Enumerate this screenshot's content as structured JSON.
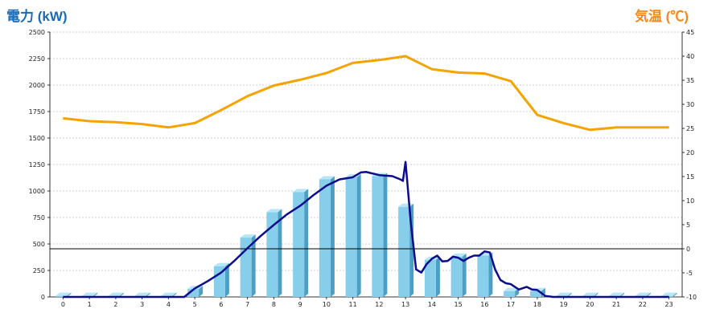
{
  "chart_data": {
    "type": "bar",
    "left_axis_title": "電力 (kW)",
    "right_axis_title": "気温 (℃)",
    "colors": {
      "left_title": "#1a6bb5",
      "right_title": "#f08a1c",
      "bar_front": "#87ceeb",
      "bar_side": "#4c9fc4",
      "bar_top": "#b9e6f7",
      "power_line": "#0c0c8c",
      "temp_line": "#f5a300",
      "grid": "#bfbfbf",
      "zero_line": "#000000"
    },
    "categories": [
      "0",
      "1",
      "2",
      "3",
      "4",
      "5",
      "6",
      "7",
      "8",
      "9",
      "10",
      "11",
      "12",
      "13",
      "14",
      "15",
      "16",
      "17",
      "18",
      "19",
      "20",
      "21",
      "22",
      "23"
    ],
    "ylim_left": [
      0,
      2500
    ],
    "yticks_left": [
      "0",
      "250",
      "500",
      "750",
      "1000",
      "1250",
      "1500",
      "1750",
      "2000",
      "2250",
      "2500"
    ],
    "ylim_right": [
      -10,
      45
    ],
    "yticks_right": [
      "-10",
      "-5",
      "0",
      "5",
      "10",
      "15",
      "20",
      "25",
      "30",
      "35",
      "40",
      "45"
    ],
    "grid": true,
    "series": [
      {
        "kind": "bar",
        "axis": "left",
        "values": [
          10,
          10,
          10,
          10,
          10,
          75,
          290,
          560,
          800,
          990,
          1110,
          1130,
          1140,
          850,
          350,
          380,
          390,
          55,
          55,
          10,
          10,
          10,
          10,
          10
        ]
      },
      {
        "kind": "line",
        "axis": "left",
        "x": [
          0,
          1,
          2,
          3,
          4,
          4.6,
          5,
          5.5,
          6,
          6.5,
          7,
          7.5,
          8,
          8.5,
          9,
          9.5,
          10,
          10.5,
          11,
          11.3,
          11.5,
          12,
          12.5,
          12.8,
          12.9,
          13,
          13.2,
          13.4,
          13.6,
          13.8,
          14,
          14.2,
          14.4,
          14.6,
          14.8,
          15,
          15.2,
          15.4,
          15.6,
          15.8,
          16,
          16.2,
          16.4,
          16.6,
          16.8,
          17,
          17.3,
          17.6,
          17.8,
          18,
          18.3,
          18.6,
          19,
          20,
          21,
          22,
          23
        ],
        "values": [
          0,
          0,
          0,
          0,
          0,
          0,
          80,
          150,
          230,
          340,
          460,
          575,
          680,
          780,
          860,
          960,
          1050,
          1110,
          1130,
          1175,
          1180,
          1150,
          1140,
          1110,
          1095,
          1275,
          700,
          260,
          230,
          310,
          360,
          390,
          335,
          340,
          380,
          370,
          340,
          370,
          390,
          390,
          430,
          420,
          260,
          160,
          130,
          120,
          70,
          95,
          70,
          65,
          10,
          0,
          0,
          0,
          0,
          0,
          0
        ]
      },
      {
        "kind": "line",
        "axis": "right",
        "x": [
          0,
          1,
          2,
          3,
          4,
          5,
          6,
          7,
          8,
          9,
          10,
          11,
          12,
          13,
          14,
          15,
          16,
          17,
          18,
          19,
          20,
          21,
          22,
          23
        ],
        "values": [
          27.1,
          26.5,
          26.3,
          25.9,
          25.2,
          26.1,
          28.8,
          31.7,
          33.9,
          35.1,
          36.5,
          38.6,
          39.2,
          40.0,
          37.3,
          36.6,
          36.4,
          34.8,
          27.8,
          26.1,
          24.7,
          25.2,
          25.2,
          25.2
        ]
      }
    ]
  }
}
